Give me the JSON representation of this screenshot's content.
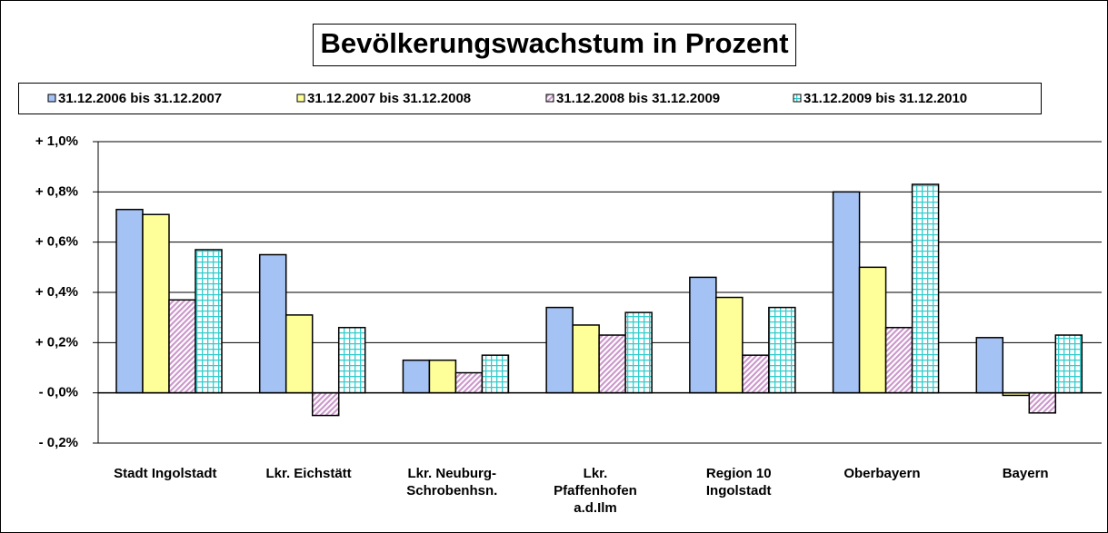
{
  "chart_data": {
    "type": "bar",
    "title": "Bevölkerungswachstum in Prozent",
    "categories": [
      "Stadt Ingolstadt",
      "Lkr. Eichstätt",
      "Lkr. Neuburg-\nSchrobenhsn.",
      "Lkr.\nPfaffenhofen\na.d.Ilm",
      "Region 10\nIngolstadt",
      "Oberbayern",
      "Bayern"
    ],
    "series": [
      {
        "name": "31.12.2006 bis 31.12.2007",
        "color": "#a4c2f4",
        "pattern": "solid",
        "values": [
          0.73,
          0.55,
          0.13,
          0.34,
          0.46,
          0.8,
          0.22
        ]
      },
      {
        "name": "31.12.2007 bis 31.12.2008",
        "color": "#ffff99",
        "pattern": "solid",
        "values": [
          0.71,
          0.31,
          0.13,
          0.27,
          0.38,
          0.5,
          -0.01
        ]
      },
      {
        "name": "31.12.2008 bis 31.12.2009",
        "color": "#cc99cc",
        "pattern": "diagonal",
        "values": [
          0.37,
          -0.09,
          0.08,
          0.23,
          0.15,
          0.26,
          -0.08
        ]
      },
      {
        "name": "31.12.2009 bis 31.12.2010",
        "color": "#33cccc",
        "pattern": "grid",
        "values": [
          0.57,
          0.26,
          0.15,
          0.32,
          0.34,
          0.83,
          0.23
        ]
      }
    ],
    "ylim": [
      -0.2,
      1.0
    ],
    "yticks": [
      {
        "value": -0.2,
        "label": "- 0,2%"
      },
      {
        "value": 0,
        "label": "- 0,0%"
      },
      {
        "value": 0.2,
        "label": "+ 0,2%"
      },
      {
        "value": 0.4,
        "label": "+ 0,4%"
      },
      {
        "value": 0.6,
        "label": "+ 0,6%"
      },
      {
        "value": 0.8,
        "label": "+ 0,8%"
      },
      {
        "value": 1.0,
        "label": "+ 1,0%"
      }
    ],
    "grid": true,
    "legend": "top"
  }
}
